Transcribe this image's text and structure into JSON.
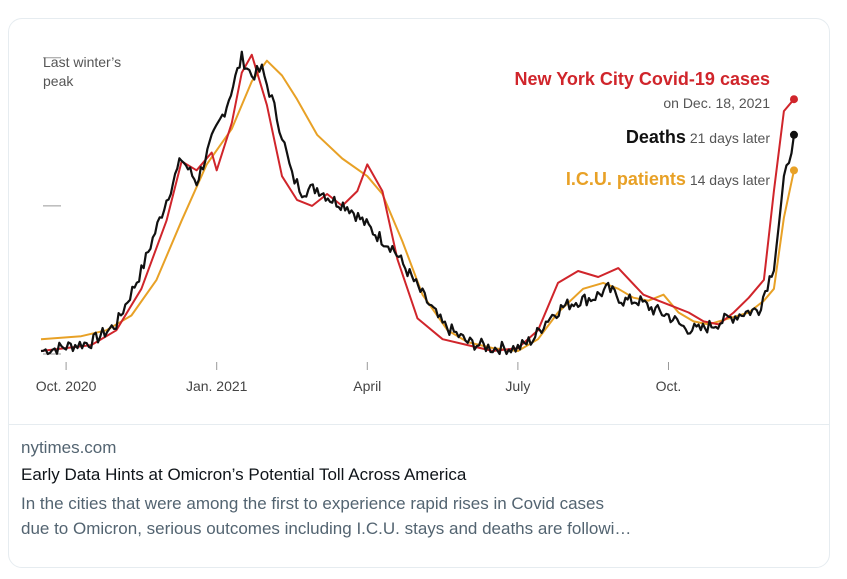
{
  "card": {
    "domain": "nytimes.com",
    "headline": "Early Data Hints at Omicron’s Potential Toll Across America",
    "description_lines": [
      "In the cities that were among the first to experience rapid rises in Covid cases",
      "due to Omicron, serious outcomes including I.C.U. stays and deaths are followi…"
    ]
  },
  "chart_data": {
    "type": "line",
    "title": "",
    "xlabel": "",
    "ylabel": "",
    "x_tick_labels": [
      "Oct. 2020",
      "Jan. 2021",
      "April",
      "July",
      "Oct."
    ],
    "x_tick_months": [
      0,
      3,
      6,
      9,
      12
    ],
    "xlim": [
      -0.5,
      14.6
    ],
    "ylim": [
      0,
      1.07
    ],
    "y_reference_label": [
      "Last winter’s",
      "peak"
    ],
    "y_gridlines": [
      0,
      0.5,
      1.0
    ],
    "grid": false,
    "annotations": [
      {
        "series": "cases",
        "parts": [
          {
            "text": "New York City Covid-19 cases",
            "bold": true
          }
        ]
      },
      {
        "series": "cases",
        "parts": [
          {
            "text": "on Dec. 18, 2021",
            "bold": false
          }
        ]
      },
      {
        "series": "deaths",
        "parts": [
          {
            "text": "Deaths",
            "bold": true
          },
          {
            "text": " 21 days later",
            "bold": false
          }
        ]
      },
      {
        "series": "icu",
        "parts": [
          {
            "text": "I.C.U. patients",
            "bold": true
          },
          {
            "text": " 14 days later",
            "bold": false
          }
        ]
      }
    ],
    "series": [
      {
        "name": "cases",
        "color": "#d0252b",
        "x": [
          -0.5,
          0.5,
          1.0,
          1.5,
          2.0,
          2.3,
          2.6,
          2.9,
          3.0,
          3.3,
          3.5,
          3.7,
          4.0,
          4.3,
          4.6,
          4.9,
          5.2,
          5.5,
          5.8,
          6.0,
          6.3,
          6.6,
          7.0,
          7.5,
          8.0,
          8.5,
          9.0,
          9.4,
          9.8,
          10.2,
          10.6,
          11.0,
          11.5,
          11.8,
          12.1,
          12.4,
          12.7,
          13.0,
          13.3,
          13.6,
          13.9,
          14.1,
          14.3,
          14.5
        ],
        "y": [
          0.01,
          0.03,
          0.08,
          0.22,
          0.45,
          0.65,
          0.62,
          0.68,
          0.62,
          0.78,
          0.95,
          1.01,
          0.84,
          0.6,
          0.52,
          0.5,
          0.54,
          0.5,
          0.55,
          0.64,
          0.55,
          0.32,
          0.12,
          0.05,
          0.03,
          0.01,
          0.02,
          0.08,
          0.24,
          0.28,
          0.26,
          0.29,
          0.2,
          0.18,
          0.16,
          0.14,
          0.11,
          0.1,
          0.14,
          0.19,
          0.25,
          0.55,
          0.82,
          0.86
        ]
      },
      {
        "name": "deaths",
        "color": "#111111",
        "x": [
          -0.5,
          0.5,
          1.0,
          1.5,
          2.0,
          2.3,
          2.6,
          2.9,
          3.2,
          3.5,
          3.7,
          3.9,
          4.1,
          4.3,
          4.5,
          4.7,
          5.0,
          5.3,
          5.6,
          5.9,
          6.2,
          6.5,
          6.8,
          7.1,
          7.5,
          8.0,
          8.5,
          9.0,
          9.3,
          9.6,
          9.9,
          10.2,
          10.5,
          10.8,
          11.1,
          11.4,
          11.7,
          12.0,
          12.3,
          12.6,
          12.9,
          13.2,
          13.5,
          13.8,
          14.1,
          14.3,
          14.5
        ],
        "y": [
          0.01,
          0.04,
          0.1,
          0.28,
          0.52,
          0.66,
          0.58,
          0.72,
          0.84,
          1.0,
          0.94,
          0.96,
          0.86,
          0.74,
          0.6,
          0.55,
          0.56,
          0.52,
          0.5,
          0.45,
          0.4,
          0.36,
          0.28,
          0.2,
          0.1,
          0.04,
          0.02,
          0.02,
          0.05,
          0.12,
          0.16,
          0.18,
          0.19,
          0.22,
          0.18,
          0.18,
          0.15,
          0.13,
          0.09,
          0.08,
          0.1,
          0.12,
          0.14,
          0.15,
          0.3,
          0.58,
          0.74
        ]
      },
      {
        "name": "icu",
        "color": "#e8a126",
        "x": [
          -0.5,
          0.3,
          0.8,
          1.3,
          1.8,
          2.3,
          2.8,
          3.3,
          3.7,
          4.0,
          4.3,
          4.6,
          5.0,
          5.5,
          6.0,
          6.3,
          6.7,
          7.1,
          7.6,
          8.0,
          8.5,
          9.0,
          9.4,
          9.8,
          10.3,
          10.7,
          11.0,
          11.3,
          11.6,
          11.9,
          12.2,
          12.5,
          12.8,
          13.2,
          13.6,
          13.9,
          14.1,
          14.3,
          14.5
        ],
        "y": [
          0.05,
          0.06,
          0.08,
          0.13,
          0.25,
          0.45,
          0.64,
          0.76,
          0.92,
          0.99,
          0.94,
          0.86,
          0.74,
          0.66,
          0.6,
          0.54,
          0.38,
          0.2,
          0.08,
          0.04,
          0.02,
          0.01,
          0.05,
          0.14,
          0.22,
          0.24,
          0.22,
          0.19,
          0.18,
          0.2,
          0.14,
          0.11,
          0.1,
          0.12,
          0.14,
          0.18,
          0.22,
          0.46,
          0.62
        ]
      }
    ]
  }
}
